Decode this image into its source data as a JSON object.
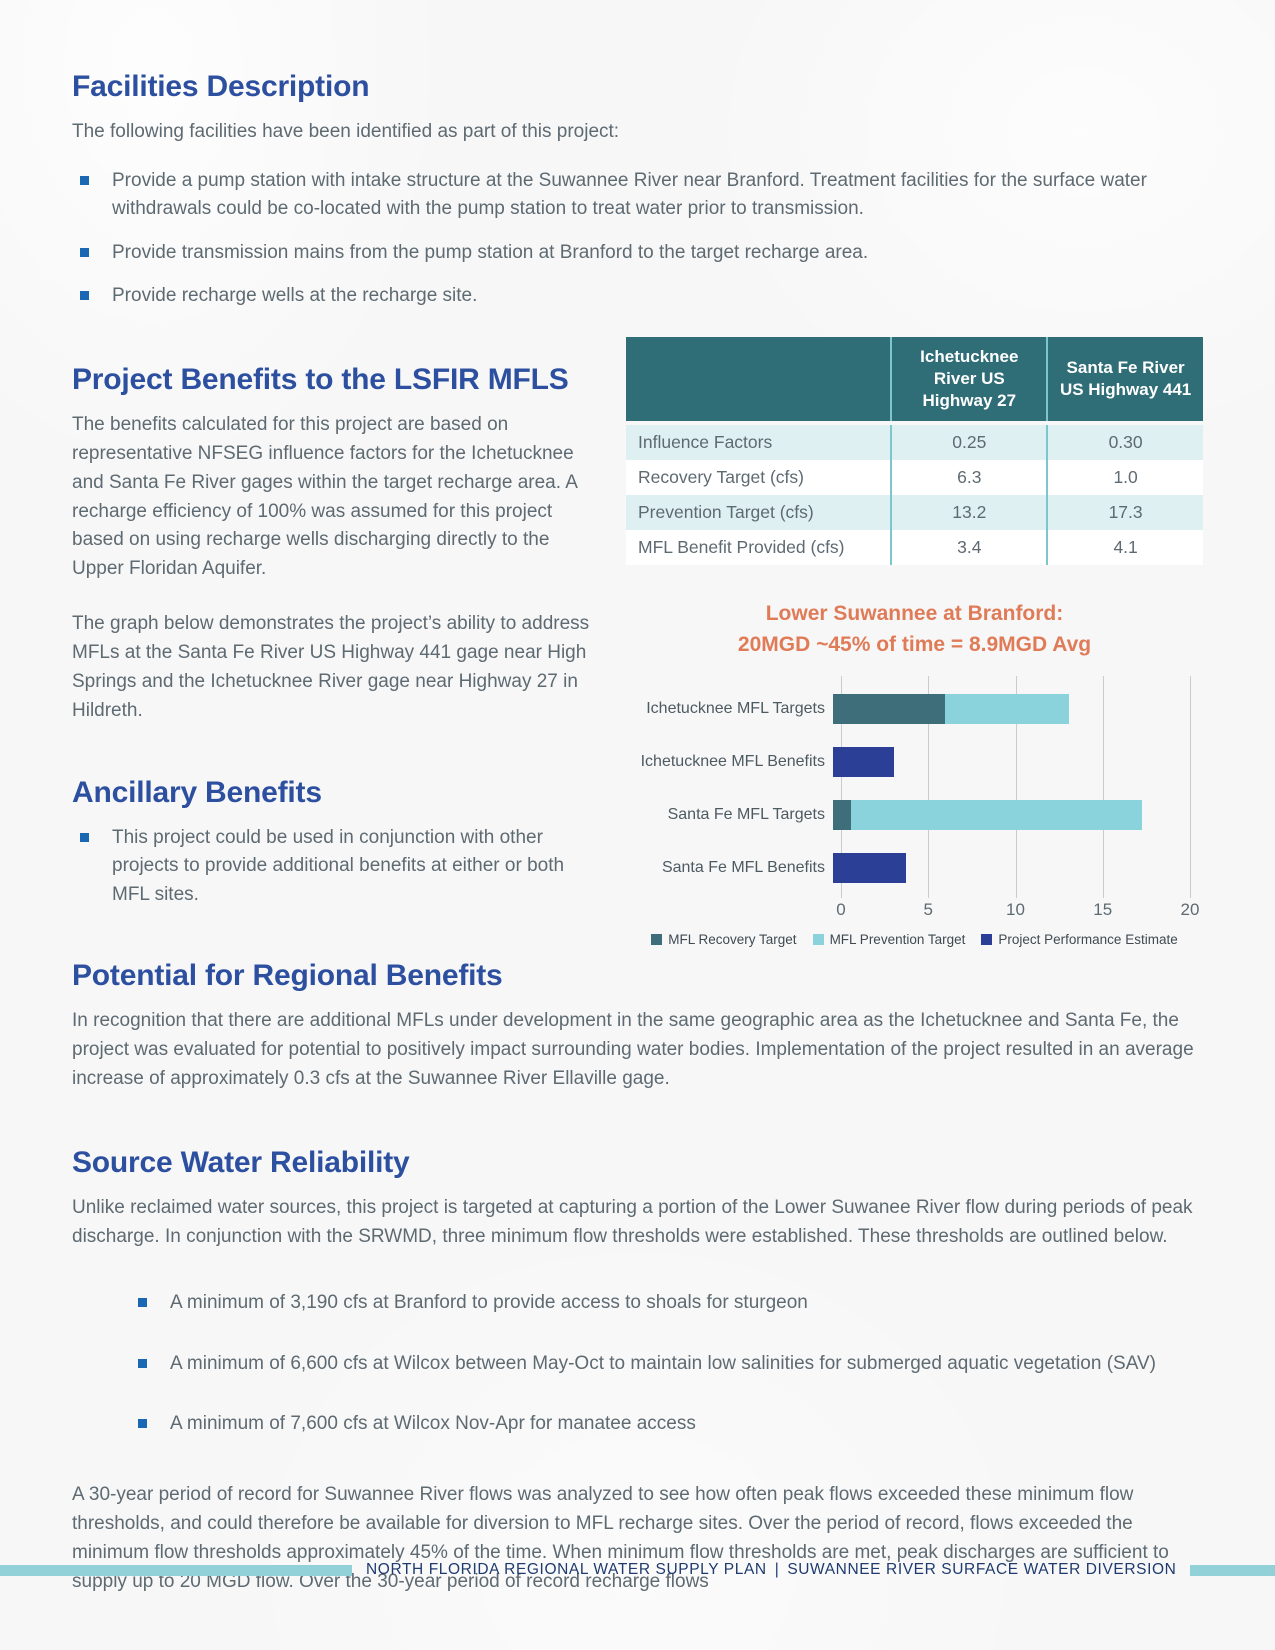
{
  "colors": {
    "heading_blue": "#2d4fa0",
    "body_gray": "#5e6a72",
    "bullet_blue": "#1a67b4",
    "table_header_bg": "#2f6d77",
    "table_row_alt": "#def0f2",
    "table_border_teal": "#7ec6cd",
    "chart_title_orange": "#e07b58",
    "bar_recovery_teal": "#3e6e7a",
    "bar_prevention_cyan": "#8ad3dc",
    "bar_performance_navy": "#2b3f96",
    "footer_bar_teal": "#93d1d8",
    "footer_text_navy": "#1e3a6e",
    "page_bg": "#f7f7f7"
  },
  "facilities": {
    "title": "Facilities Description",
    "intro": "The following facilities have been identified as part of this project:",
    "bullets": [
      "Provide a pump station with intake structure at the Suwannee River near Branford. Treatment facilities for the surface water withdrawals could be co-located with the pump station to treat water prior to transmission.",
      "Provide transmission mains from the pump station at Branford to the target recharge area.",
      "Provide recharge wells at the recharge site."
    ]
  },
  "project_benefits": {
    "title": "Project Benefits to the LSFIR MFLS",
    "para1": "The benefits calculated for this project are based on representative NFSEG influence factors for the Ichetucknee and Santa Fe River gages within the target recharge area. A recharge efficiency of 100% was assumed for this project based on using recharge wells discharging directly to the Upper Floridan Aquifer.",
    "para2": "The graph below demonstrates the project’s ability to address MFLs at the Santa Fe River US Highway 441 gage near High Springs and the Ichetucknee River gage near Highway 27 in Hildreth."
  },
  "ancillary": {
    "title": "Ancillary Benefits",
    "bullets": [
      "This project could be used in conjunction with other projects to provide additional benefits at either or both MFL sites."
    ]
  },
  "table": {
    "col_headers": [
      "Ichetucknee River US Highway 27",
      "Santa Fe River US Highway 441"
    ],
    "rows": [
      {
        "label": "Influence Factors",
        "values": [
          "0.25",
          "0.30"
        ]
      },
      {
        "label": "Recovery Target (cfs)",
        "values": [
          "6.3",
          "1.0"
        ]
      },
      {
        "label": "Prevention Target (cfs)",
        "values": [
          "13.2",
          "17.3"
        ]
      },
      {
        "label": "MFL Benefit Provided (cfs)",
        "values": [
          "3.4",
          "4.1"
        ]
      }
    ]
  },
  "chart_data": {
    "type": "bar",
    "orientation": "horizontal",
    "title_line1": "Lower Suwannee at Branford:",
    "title_line2": "20MGD ~45% of time = 8.9MGD Avg",
    "xlabel": "",
    "ylabel": "",
    "xlim": [
      0,
      20
    ],
    "x_ticks": [
      0,
      5,
      10,
      15,
      20
    ],
    "grid": true,
    "legend_position": "bottom",
    "categories": [
      "Ichetucknee MFL Targets",
      "Ichetucknee MFL Benefits",
      "Santa Fe MFL Targets",
      "Santa Fe MFL Benefits"
    ],
    "bars": [
      {
        "label": "Ichetucknee MFL Targets",
        "segments": [
          {
            "series": "MFL Recovery Target",
            "from": 0,
            "to": 6.3
          },
          {
            "series": "MFL Prevention Target",
            "from": 6.3,
            "to": 13.2
          }
        ]
      },
      {
        "label": "Ichetucknee MFL Benefits",
        "segments": [
          {
            "series": "Project Performance Estimate",
            "from": 0,
            "to": 3.4
          }
        ]
      },
      {
        "label": "Santa Fe MFL Targets",
        "segments": [
          {
            "series": "MFL Recovery Target",
            "from": 0,
            "to": 1.0
          },
          {
            "series": "MFL Prevention Target",
            "from": 1.0,
            "to": 17.3
          }
        ]
      },
      {
        "label": "Santa Fe MFL Benefits",
        "segments": [
          {
            "series": "Project Performance Estimate",
            "from": 0,
            "to": 4.1
          }
        ]
      }
    ],
    "legend": [
      {
        "label": "MFL Recovery Target",
        "color": "#3e6e7a"
      },
      {
        "label": "MFL Prevention Target",
        "color": "#8ad3dc"
      },
      {
        "label": "Project Performance Estimate",
        "color": "#2b3f96"
      }
    ]
  },
  "regional": {
    "title": "Potential for Regional Benefits",
    "para": "In recognition that there are additional MFLs under development in the same geographic area as the Ichetucknee and Santa Fe, the project was evaluated for potential to positively impact surrounding water bodies. Implementation of the project resulted in an average increase of approximately 0.3 cfs at the Suwannee River Ellaville gage."
  },
  "source_water": {
    "title": "Source Water Reliability",
    "para": "Unlike reclaimed water sources, this project is targeted at capturing a portion of the Lower Suwanee River flow during periods of peak discharge. In conjunction with the SRWMD, three minimum flow thresholds were established. These thresholds are outlined below.",
    "bullets": [
      "A minimum of 3,190 cfs at Branford to provide access to shoals for sturgeon",
      "A minimum of 6,600 cfs at Wilcox between May-Oct to maintain low salinities for submerged aquatic vegetation (SAV)",
      "A minimum of 7,600 cfs at Wilcox Nov-Apr for manatee access"
    ],
    "closing": "A 30-year period of record for Suwannee River flows was analyzed to see how often peak flows exceeded these minimum flow thresholds, and could therefore be available for diversion to MFL recharge sites. Over the period of record, flows exceeded the minimum flow thresholds approximately 45% of the time. When minimum flow thresholds are met, peak discharges are sufficient to supply up to 20 MGD flow. Over the 30-year period of record recharge flows"
  },
  "footer": {
    "left": "NORTH FLORIDA REGIONAL WATER SUPPLY PLAN",
    "separator": "|",
    "right": "SUWANNEE RIVER SURFACE WATER DIVERSION"
  }
}
